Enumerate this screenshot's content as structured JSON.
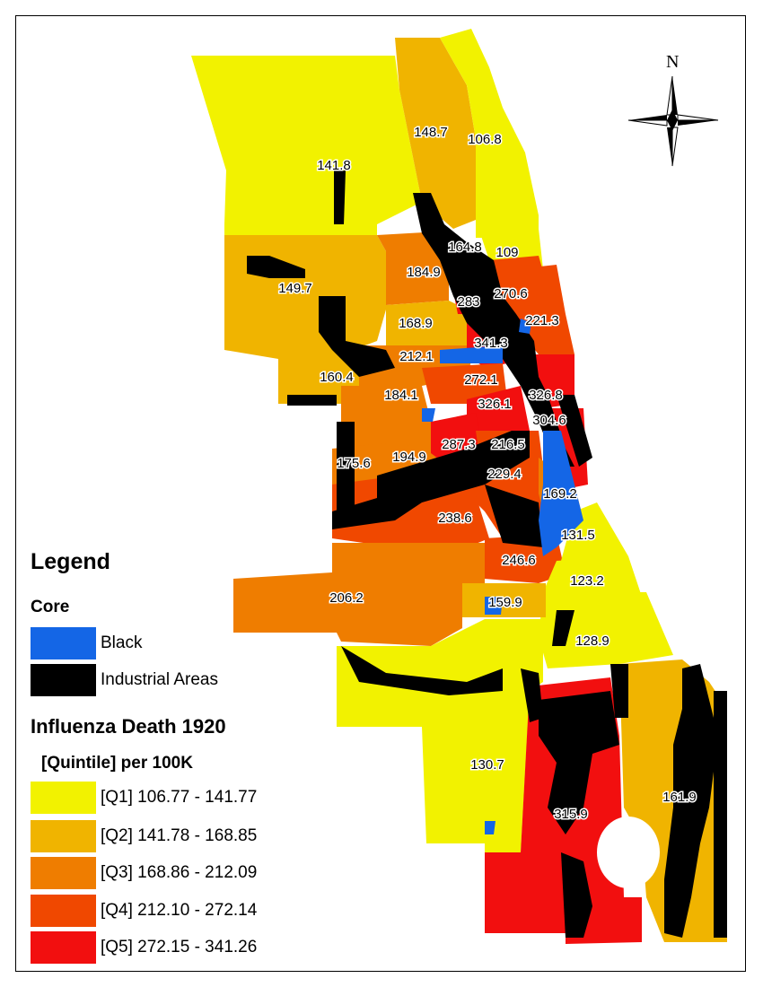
{
  "colors": {
    "q1": "#f2f200",
    "q2": "#f0b400",
    "q3": "#ef7d00",
    "q4": "#f04800",
    "q5": "#f20f0f",
    "black": "#1466e6",
    "industrial": "#000000"
  },
  "compass": {
    "north_label": "N"
  },
  "legend": {
    "title": "Legend",
    "core_heading": "Core",
    "core_items": [
      {
        "label": "Black",
        "color": "#1466e6"
      },
      {
        "label": "Industrial Areas",
        "color": "#000000"
      }
    ],
    "influenza_heading": "Influenza Death 1920",
    "influenza_subheading": "[Quintile] per 100K",
    "quintiles": [
      {
        "label": "[Q1] 106.77 - 141.77",
        "color": "#f2f200"
      },
      {
        "label": "[Q2] 141.78 - 168.85",
        "color": "#f0b400"
      },
      {
        "label": "[Q3] 168.86 - 212.09",
        "color": "#ef7d00"
      },
      {
        "label": "[Q4] 212.10 - 272.14",
        "color": "#f04800"
      },
      {
        "label": "[Q5] 272.15 - 341.26",
        "color": "#f20f0f"
      }
    ]
  },
  "rates": {
    "r148_7": "148.7",
    "r106_8": "106.8",
    "r141_8": "141.8",
    "r164_8": "164.8",
    "r109": "109",
    "r184_9": "184.9",
    "r149_7": "149.7",
    "r283": "283",
    "r270_6": "270.6",
    "r221_3": "221.3",
    "r168_9": "168.9",
    "r341_3": "341.3",
    "r212_1": "212.1",
    "r160_4": "160.4",
    "r272_1": "272.1",
    "r184_1": "184.1",
    "r326_1": "326.1",
    "r326_8": "326.8",
    "r304_6": "304.6",
    "r287_3": "287.3",
    "r216_5": "216.5",
    "r175_6": "175.6",
    "r194_9": "194.9",
    "r229_4": "229.4",
    "r169_2": "169.2",
    "r238_6": "238.6",
    "r131_5": "131.5",
    "r246_6": "246.6",
    "r123_2": "123.2",
    "r206_2": "206.2",
    "r159_9": "159.9",
    "r128_9": "128.9",
    "r130_7": "130.7",
    "r315_9": "315.9",
    "r161_9": "161.9"
  }
}
